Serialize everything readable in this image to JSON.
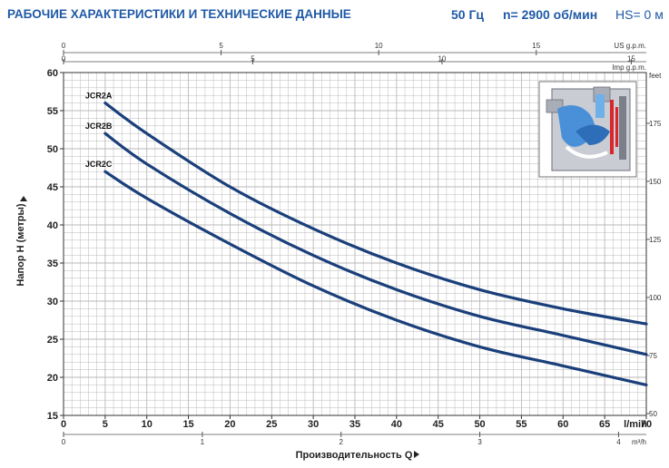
{
  "header": {
    "title": "РАБОЧИЕ ХАРАКТЕРИСТИКИ И ТЕХНИЧЕСКИЕ ДАННЫЕ",
    "frequency": "50 Гц",
    "speed": "n= 2900 об/мин",
    "hs": "HS= 0 м"
  },
  "colors": {
    "accent": "#1f5aa6",
    "curve": "#1a3f7a",
    "grid": "#b9b9b9"
  },
  "icons": {
    "pump_cross_section": "pump-cross-section-icon"
  },
  "chart_data": {
    "type": "line",
    "xlabel": "Производительность Q",
    "ylabel": "Напор H (метры)",
    "x_unit_main": "l/min",
    "xlim": [
      0,
      70
    ],
    "ylim": [
      15,
      60
    ],
    "x_ticks": [
      0,
      5,
      10,
      15,
      20,
      25,
      30,
      35,
      40,
      45,
      50,
      55,
      60,
      65,
      70
    ],
    "y_ticks": [
      15,
      20,
      25,
      30,
      35,
      40,
      45,
      50,
      55,
      60
    ],
    "secondary_axes": {
      "us_gpm": {
        "label": "US g.p.m.",
        "ticks": [
          0,
          5,
          10,
          15
        ]
      },
      "imp_gpm": {
        "label": "Imp g.p.m.",
        "ticks": [
          0,
          5,
          10,
          15
        ]
      },
      "m3h": {
        "label": "m³/h",
        "ticks": [
          0,
          1,
          2,
          3,
          4
        ]
      },
      "feet": {
        "label": "feet",
        "ticks": [
          50,
          75,
          100,
          125,
          150,
          175
        ]
      }
    },
    "grid": true,
    "series": [
      {
        "name": "JCR2A",
        "x": [
          5,
          10,
          20,
          30,
          40,
          50,
          60,
          70
        ],
        "values": [
          56,
          52,
          45,
          39.5,
          35,
          31.5,
          29,
          27
        ]
      },
      {
        "name": "JCR2B",
        "x": [
          5,
          10,
          20,
          30,
          40,
          50,
          60,
          70
        ],
        "values": [
          52,
          48,
          41.5,
          36,
          31.5,
          28,
          25.5,
          23
        ]
      },
      {
        "name": "JCR2C",
        "x": [
          5,
          10,
          20,
          30,
          40,
          50,
          60,
          70
        ],
        "values": [
          47,
          43.5,
          37.5,
          32,
          27.5,
          24,
          21.5,
          19
        ]
      }
    ]
  }
}
